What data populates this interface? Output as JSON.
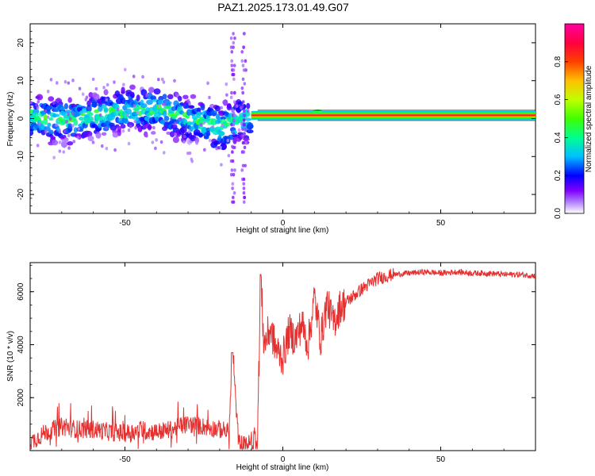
{
  "title": "PAZ1.2025.173.01.49.G07",
  "chart_data": [
    {
      "type": "heatmap",
      "xlabel": "Height of straight line (km)",
      "ylabel": "Frequency (Hz)",
      "xlim": [
        -80,
        80
      ],
      "ylim": [
        -25,
        25
      ],
      "x_ticks": [
        -50,
        0,
        50
      ],
      "y_ticks": [
        -20,
        -10,
        0,
        10,
        20
      ],
      "colorbar": {
        "label": "Normalized spectral amplitude",
        "range": [
          0,
          1
        ],
        "ticks": [
          0.0,
          0.2,
          0.4,
          0.6,
          0.8
        ],
        "colors": [
          "#ffffff",
          "#8000ff",
          "#0000ff",
          "#00c0ff",
          "#00ff80",
          "#40ff00",
          "#c0ff00",
          "#ffc000",
          "#ff4000",
          "#ff0040",
          "#ff00a0"
        ]
      },
      "ridge": [
        [
          -80,
          0.5
        ],
        [
          -70,
          -0.5
        ],
        [
          -60,
          0.5
        ],
        [
          -50,
          2
        ],
        [
          -40,
          2.5
        ],
        [
          -30,
          0
        ],
        [
          -20,
          -2.5
        ],
        [
          -15,
          -1
        ],
        [
          -10,
          0.5
        ],
        [
          0,
          1
        ],
        [
          10,
          1.2
        ],
        [
          20,
          1
        ],
        [
          50,
          1
        ],
        [
          80,
          1
        ]
      ]
    },
    {
      "type": "line",
      "xlabel": "Height of straight line (km)",
      "ylabel": "SNR (10 * v/v)",
      "xlim": [
        -80,
        80
      ],
      "ylim": [
        0,
        7100
      ],
      "x_ticks": [
        -50,
        0,
        50
      ],
      "y_ticks": [
        2000,
        4000,
        6000
      ],
      "color": "#e53030",
      "series": [
        {
          "x": [
            -80,
            -75,
            -70,
            -65,
            -60,
            -55,
            -50,
            -45,
            -40,
            -35,
            -30,
            -25,
            -20,
            -17,
            -16,
            -14,
            -12,
            -10,
            -8,
            -7,
            -6,
            -4,
            -2,
            0,
            2,
            4,
            6,
            8,
            10,
            12,
            14,
            16,
            18,
            20,
            25,
            30,
            35,
            40,
            45,
            50,
            55,
            60,
            65,
            70,
            75,
            80
          ],
          "y": [
            200,
            600,
            800,
            700,
            700,
            600,
            550,
            650,
            600,
            700,
            900,
            800,
            700,
            600,
            3700,
            200,
            100,
            200,
            600,
            6600,
            4000,
            4600,
            3800,
            3500,
            4500,
            4200,
            4800,
            4000,
            5800,
            4200,
            5600,
            4800,
            5400,
            5600,
            6100,
            6500,
            6650,
            6700,
            6750,
            6700,
            6750,
            6700,
            6700,
            6650,
            6650,
            6600
          ]
        }
      ]
    }
  ]
}
